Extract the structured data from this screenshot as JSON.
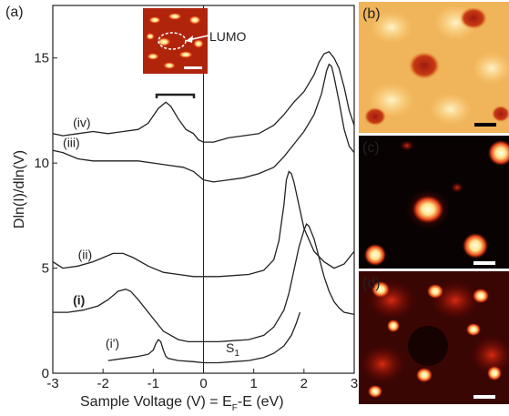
{
  "chart_data": {
    "type": "line",
    "panel_labels": [
      "(a)",
      "(b)",
      "(c)",
      "(d)"
    ],
    "xlabel": "Sample Voltage (V) = E",
    "xlabel_sub": "F",
    "xlabel_tail": "-E  (eV)",
    "ylabel": "Dln(I)/dln(V)",
    "xlim": [
      -3,
      3
    ],
    "ylim": [
      0,
      17.5
    ],
    "xticks": [
      -3,
      -2,
      -1,
      0,
      1,
      2,
      3
    ],
    "yticks": [
      0,
      5,
      10,
      15
    ],
    "inset_annotation": "LUMO",
    "peak_label": "S",
    "peak_label_sub": "1",
    "series": [
      {
        "name": "(i')",
        "x": [
          -1.9,
          -1.6,
          -1.3,
          -1.1,
          -1.0,
          -0.95,
          -0.9,
          -0.85,
          -0.8,
          -0.75,
          -0.7,
          -0.5,
          -0.2,
          0.0,
          0.3,
          0.6,
          0.9,
          1.2,
          1.4,
          1.6,
          1.75,
          1.85,
          1.92
        ],
        "y": [
          0.6,
          0.7,
          0.8,
          0.9,
          1.1,
          1.4,
          1.6,
          1.5,
          1.1,
          0.8,
          0.7,
          0.6,
          0.55,
          0.5,
          0.5,
          0.55,
          0.6,
          0.75,
          0.95,
          1.3,
          1.8,
          2.4,
          2.9
        ]
      },
      {
        "name": "(i)",
        "x": [
          -3.0,
          -2.7,
          -2.4,
          -2.1,
          -1.9,
          -1.7,
          -1.55,
          -1.45,
          -1.3,
          -1.0,
          -0.8,
          -0.5,
          -0.3,
          0.0,
          0.3,
          0.6,
          0.9,
          1.2,
          1.4,
          1.6,
          1.7,
          1.8,
          1.9,
          2.0,
          2.05,
          2.1,
          2.2,
          2.3,
          2.4,
          2.5,
          2.6,
          2.7,
          2.8,
          2.9,
          3.0
        ],
        "y": [
          2.9,
          2.9,
          3.0,
          3.2,
          3.5,
          3.9,
          4.0,
          3.9,
          3.5,
          2.6,
          2.0,
          1.6,
          1.5,
          1.5,
          1.5,
          1.55,
          1.6,
          1.8,
          2.2,
          3.0,
          3.8,
          4.9,
          6.0,
          6.8,
          7.1,
          7.0,
          6.4,
          5.5,
          4.6,
          3.9,
          3.4,
          3.1,
          2.9,
          2.85,
          2.8
        ]
      },
      {
        "name": "(ii)",
        "x": [
          -3.0,
          -2.8,
          -2.5,
          -2.2,
          -2.0,
          -1.8,
          -1.6,
          -1.4,
          -1.1,
          -0.8,
          -0.5,
          -0.2,
          0.0,
          0.3,
          0.6,
          0.9,
          1.2,
          1.4,
          1.5,
          1.6,
          1.65,
          1.7,
          1.75,
          1.8,
          1.9,
          2.0,
          2.2,
          2.4,
          2.6,
          2.8,
          3.0
        ],
        "y": [
          5.3,
          5.0,
          5.1,
          5.3,
          5.5,
          5.7,
          5.7,
          5.5,
          5.1,
          4.8,
          4.7,
          4.6,
          4.6,
          4.6,
          4.65,
          4.7,
          4.9,
          5.4,
          6.3,
          8.0,
          9.2,
          9.6,
          9.5,
          9.1,
          8.0,
          6.9,
          5.8,
          5.3,
          5.0,
          5.2,
          5.8
        ]
      },
      {
        "name": "(iii)",
        "x": [
          -3.0,
          -2.8,
          -2.5,
          -2.2,
          -1.9,
          -1.6,
          -1.3,
          -1.0,
          -0.7,
          -0.4,
          -0.2,
          -0.1,
          0.0,
          0.2,
          0.5,
          0.8,
          1.1,
          1.4,
          1.6,
          1.8,
          2.0,
          2.2,
          2.35,
          2.45,
          2.5,
          2.55,
          2.6,
          2.7,
          2.8,
          2.9,
          3.0
        ],
        "y": [
          10.6,
          10.5,
          10.2,
          10.1,
          10.1,
          10.1,
          10.1,
          10.0,
          9.9,
          9.8,
          9.6,
          9.4,
          9.2,
          9.1,
          9.2,
          9.3,
          9.5,
          9.8,
          10.3,
          10.9,
          11.5,
          12.3,
          13.3,
          14.4,
          14.7,
          14.6,
          14.1,
          12.9,
          11.6,
          10.8,
          10.5
        ]
      },
      {
        "name": "(iv)",
        "x": [
          -3.0,
          -2.8,
          -2.5,
          -2.2,
          -1.9,
          -1.6,
          -1.3,
          -1.1,
          -0.9,
          -0.75,
          -0.65,
          -0.5,
          -0.35,
          -0.2,
          -0.1,
          0.0,
          0.2,
          0.5,
          0.8,
          1.1,
          1.4,
          1.6,
          1.8,
          2.0,
          2.2,
          2.3,
          2.4,
          2.5,
          2.6,
          2.7,
          2.8,
          2.9,
          3.0
        ],
        "y": [
          11.4,
          11.3,
          11.4,
          11.5,
          11.4,
          11.5,
          11.6,
          11.9,
          12.6,
          12.9,
          12.7,
          12.1,
          11.6,
          11.4,
          11.1,
          11.0,
          11.0,
          11.2,
          11.3,
          11.4,
          11.8,
          12.3,
          12.9,
          13.4,
          14.2,
          14.8,
          15.2,
          15.3,
          15.0,
          14.5,
          13.6,
          12.5,
          11.8
        ]
      }
    ],
    "images": [
      {
        "panel": "(b)",
        "colormap": "orange-yellow",
        "scale_bar": true
      },
      {
        "panel": "(c)",
        "colormap": "black-red-yellow",
        "scale_bar": true
      },
      {
        "panel": "(d)",
        "colormap": "black-red-yellow",
        "scale_bar": true
      }
    ],
    "grid": false,
    "vertical_line_at": 0
  }
}
